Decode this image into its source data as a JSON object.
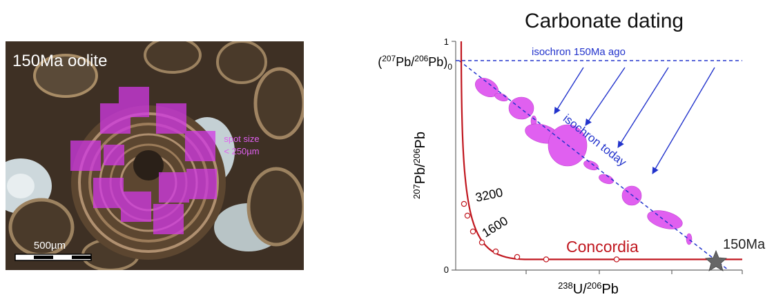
{
  "photo": {
    "label": "150Ma oolite",
    "spot_size": [
      "spot size",
      "< 250µm"
    ],
    "scale_bar": "500µm"
  },
  "diagram": {
    "title": "Carbonate dating",
    "y_ticks": [
      "1",
      "0"
    ],
    "y_intercept_label": {
      "parts": [
        "(",
        "207",
        "Pb/",
        "206",
        "Pb)",
        "0"
      ]
    },
    "y_axis_label": {
      "parts": [
        "207",
        "Pb/",
        "206",
        "Pb"
      ]
    },
    "x_axis_label": {
      "parts": [
        "238",
        "U/",
        "206",
        "Pb"
      ]
    },
    "isochron_past": "isochron 150Ma ago",
    "isochron_today": "isochron today",
    "concordia_ages": [
      "3200",
      "1600"
    ],
    "concordia": "Concordia",
    "sample_age": "150Ma"
  }
}
